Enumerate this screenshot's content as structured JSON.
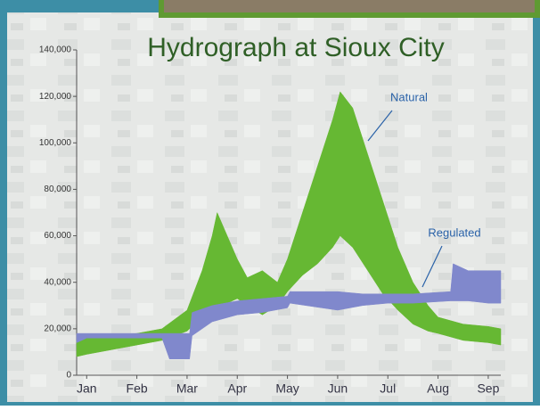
{
  "chart_data": {
    "type": "band",
    "title": "Hydrograph at Sioux City",
    "ylim": [
      0,
      140000
    ],
    "yticks": [
      0,
      {
        "value": 20000,
        "label": "20,000"
      },
      {
        "value": 40000,
        "label": "40,000"
      },
      {
        "value": 60000,
        "label": "60,000"
      },
      {
        "value": 80000,
        "label": "80,000"
      },
      {
        "value": 100000,
        "label": "100,000"
      },
      {
        "value": 120000,
        "label": "120,000"
      },
      {
        "value": 140000,
        "label": "140,000"
      }
    ],
    "xlim": [
      -0.2,
      8.25
    ],
    "xticks": [
      {
        "value": 0,
        "label": "Jan"
      },
      {
        "value": 1,
        "label": "Feb"
      },
      {
        "value": 2,
        "label": "Mar"
      },
      {
        "value": 3,
        "label": "Apr"
      },
      {
        "value": 4,
        "label": "May"
      },
      {
        "value": 5,
        "label": "Jun"
      },
      {
        "value": 6,
        "label": "Jul"
      },
      {
        "value": 7,
        "label": "Aug"
      },
      {
        "value": 8,
        "label": "Sep"
      }
    ],
    "series": [
      {
        "name": "Natural",
        "color": "#66b833",
        "x": [
          -0.2,
          0,
          0.5,
          1,
          1.5,
          2,
          2.3,
          2.5,
          2.6,
          2.8,
          3.0,
          3.2,
          3.5,
          3.8,
          4.0,
          4.3,
          4.6,
          4.9,
          5.05,
          5.3,
          5.6,
          5.9,
          6.2,
          6.5,
          6.8,
          7.0,
          7.5,
          8.0,
          8.25
        ],
        "upper": [
          15000,
          16000,
          17000,
          18000,
          20000,
          28000,
          45000,
          60000,
          70000,
          60000,
          50000,
          42000,
          45000,
          40000,
          50000,
          70000,
          90000,
          110000,
          122000,
          115000,
          95000,
          75000,
          55000,
          40000,
          30000,
          25000,
          22000,
          21000,
          20000
        ],
        "lower": [
          8000,
          9000,
          11000,
          13000,
          15000,
          19000,
          25000,
          28000,
          30000,
          31000,
          33000,
          30000,
          26000,
          30000,
          36000,
          43000,
          48000,
          55000,
          60000,
          55000,
          45000,
          35000,
          28000,
          22000,
          19000,
          18000,
          15000,
          14000,
          13000
        ]
      },
      {
        "name": "Regulated",
        "color": "#8088cc",
        "x": [
          -0.2,
          0,
          1.5,
          1.65,
          2.05,
          2.1,
          2.5,
          3.0,
          3.5,
          4.0,
          4.05,
          5.0,
          5.5,
          6.0,
          6.5,
          7.25,
          7.3,
          7.6,
          8.0,
          8.25
        ],
        "upper": [
          18000,
          18000,
          18000,
          18000,
          18000,
          27000,
          30000,
          32000,
          33000,
          34000,
          36000,
          36000,
          35000,
          35000,
          35000,
          36000,
          48000,
          45000,
          45000,
          45000
        ],
        "lower": [
          14000,
          16000,
          16000,
          7000,
          7000,
          17000,
          23000,
          26000,
          27000,
          29000,
          31000,
          28000,
          30000,
          31000,
          31000,
          32000,
          32000,
          32000,
          31000,
          31000
        ]
      }
    ],
    "annotations": [
      {
        "text": "Natural"
      },
      {
        "text": "Regulated"
      }
    ]
  }
}
